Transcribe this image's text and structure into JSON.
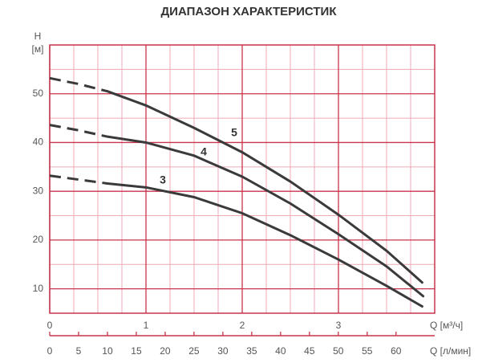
{
  "chart_data": {
    "type": "line",
    "title": "ДИАПАЗОН ХАРАКТЕРИСТИК",
    "y_label": "H",
    "y_unit": "[м]",
    "x_label": "Q [м³/ч]",
    "x2_label": "Q [л/мин]",
    "xlim": [
      0,
      4
    ],
    "xticks": [
      0,
      1,
      2,
      3
    ],
    "ylim": [
      5,
      60
    ],
    "yticks": [
      10,
      20,
      30,
      40,
      50
    ],
    "xgrid": [
      0.25,
      0.5,
      0.75,
      1.25,
      1.5,
      1.75,
      2.25,
      2.5,
      2.75,
      3.25,
      3.5,
      3.75
    ],
    "ygrid": [
      15,
      25,
      35,
      45,
      55
    ],
    "x2lim": [
      0,
      66.7
    ],
    "x2ticks": [
      0,
      5,
      10,
      15,
      20,
      25,
      30,
      35,
      40,
      45,
      50,
      55,
      60
    ],
    "grid": true,
    "series": [
      {
        "name": "3",
        "color": "#3a3a3a",
        "dashed": {
          "x": [
            0,
            0.3,
            0.6
          ],
          "values": [
            33.2,
            32.4,
            31.6
          ]
        },
        "x": [
          0.6,
          1.0,
          1.5,
          2.0,
          2.5,
          3.0,
          3.5,
          3.87
        ],
        "values": [
          31.6,
          30.8,
          28.8,
          25.5,
          21,
          16,
          10.6,
          6.4
        ]
      },
      {
        "name": "4",
        "color": "#3a3a3a",
        "dashed": {
          "x": [
            0,
            0.3,
            0.6
          ],
          "values": [
            43.6,
            42.5,
            41.2
          ]
        },
        "x": [
          0.6,
          1.0,
          1.5,
          2.0,
          2.5,
          3.0,
          3.5,
          3.88
        ],
        "values": [
          41.2,
          40,
          37.3,
          33,
          27.5,
          21.2,
          14.6,
          8.5
        ]
      },
      {
        "name": "5",
        "color": "#3a3a3a",
        "dashed": {
          "x": [
            0,
            0.3,
            0.6
          ],
          "values": [
            53.2,
            52,
            50.5
          ]
        },
        "x": [
          0.6,
          1.0,
          1.5,
          2.0,
          2.5,
          3.0,
          3.5,
          3.87
        ],
        "values": [
          50.5,
          47.6,
          43,
          38,
          32,
          25.2,
          17.8,
          11.3
        ]
      }
    ]
  }
}
